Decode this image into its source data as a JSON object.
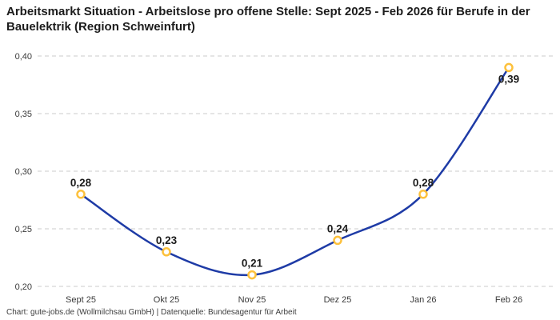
{
  "title": "Arbeitsmarkt Situation - Arbeitslose pro offene Stelle: Sept 2025 - Feb 2026 für Berufe in der Bauelektrik (Region Schweinfurt)",
  "footer": "Chart: gute-jobs.de (Wollmilchsau GmbH) | Datenquelle: Bundesagentur für Arbeit",
  "chart_data": {
    "type": "line",
    "title": "Arbeitsmarkt Situation - Arbeitslose pro offene Stelle: Sept 2025 - Feb 2026 für Berufe in der Bauelektrik (Region Schweinfurt)",
    "categories": [
      "Sept 25",
      "Okt 25",
      "Nov 25",
      "Dez 25",
      "Jan 26",
      "Feb 26"
    ],
    "series": [
      {
        "name": "Arbeitslose pro offene Stelle",
        "values": [
          0.28,
          0.23,
          0.21,
          0.24,
          0.28,
          0.39
        ],
        "point_labels": [
          "0,28",
          "0,23",
          "0,21",
          "0,24",
          "0,28",
          "0,39"
        ]
      }
    ],
    "xlabel": "",
    "ylabel": "",
    "ylim": [
      0.2,
      0.4
    ],
    "y_ticks": [
      0.2,
      0.25,
      0.3,
      0.35,
      0.4
    ],
    "y_tick_labels": [
      "0,20",
      "0,25",
      "0,30",
      "0,35",
      "0,40"
    ],
    "grid": "horizontal-dashed",
    "legend_position": "none",
    "colors": {
      "line": "#1e3ba6",
      "marker_stroke": "#fdc13c",
      "marker_fill": "#ffffff",
      "gridline": "#cbcbcb",
      "point_label": "#1b1b1b",
      "axis_text": "#3a3a3a",
      "title_text": "#1c1c1c",
      "footer_text": "#3d3d3d",
      "background": "#ffffff"
    }
  }
}
